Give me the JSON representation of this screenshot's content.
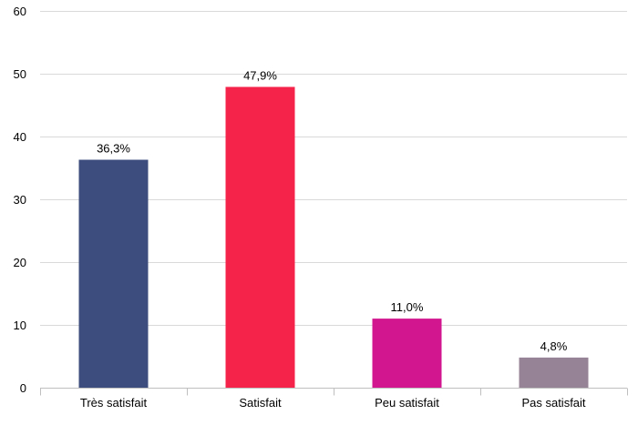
{
  "chart_data": {
    "type": "bar",
    "title": "",
    "xlabel": "",
    "ylabel": "",
    "categories": [
      "Très satisfait",
      "Satisfait",
      "Peu satisfait",
      "Pas satisfait"
    ],
    "values": [
      36.3,
      47.9,
      11.0,
      4.8
    ],
    "data_labels": [
      "36,3%",
      "47,9%",
      "11,0%",
      "4,8%"
    ],
    "colors": [
      "#3d4e7e",
      "#f5234a",
      "#d2168f",
      "#968395"
    ],
    "ylim": [
      0,
      60
    ],
    "yticks": [
      0,
      10,
      20,
      30,
      40,
      50,
      60
    ],
    "grid": true,
    "legend": "none"
  }
}
